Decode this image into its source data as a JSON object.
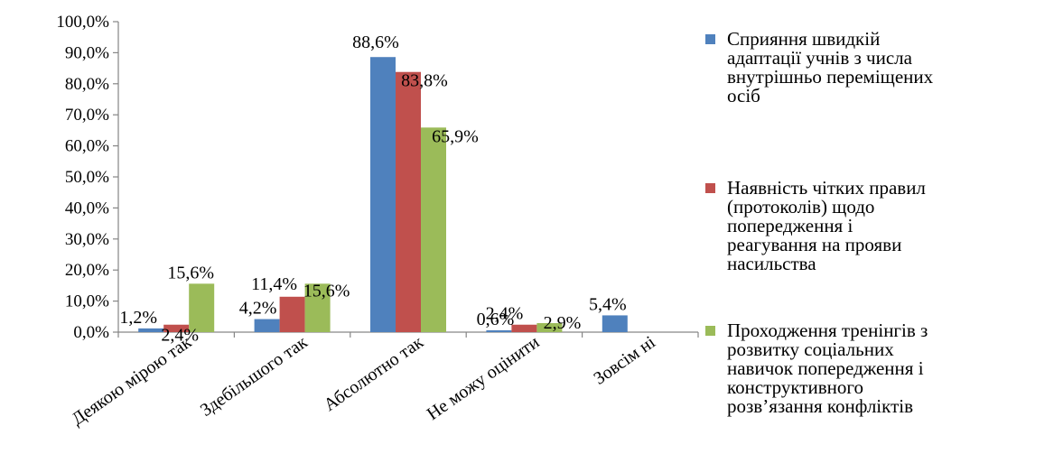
{
  "chart_data": {
    "type": "bar",
    "categories": [
      "Деякою мірою так",
      "Здебільшого так",
      "Абсолютно так",
      "Не можу оцінити",
      "Зовсім ні"
    ],
    "series": [
      {
        "name": "Сприяння швидкій адаптації учнів з числа внутрішньо переміщених осіб",
        "name_lines": [
          "Сприяння швидкій",
          "адаптації учнів з числа",
          "внутрішньо переміщених",
          "осіб"
        ],
        "color": "#4F81BD",
        "values": [
          1.2,
          4.2,
          88.6,
          0.6,
          5.4
        ],
        "labels": [
          "1,2%",
          "4,2%",
          "88,6%",
          "0,6%",
          "5,4%"
        ]
      },
      {
        "name": "Наявність чітких правил (протоколів) щодо попередження і реагування на прояви насильства",
        "name_lines": [
          "Наявність чітких правил",
          "(протоколів) щодо",
          "попередження і",
          "реагування на прояви",
          "насильства"
        ],
        "color": "#C0504D",
        "values": [
          2.4,
          11.4,
          83.8,
          2.4,
          null
        ],
        "labels": [
          "2,4%",
          "11,4%",
          "83,8%",
          "2,4%",
          ""
        ]
      },
      {
        "name": "Проходження тренінгів з розвитку соціальних навичок попередження і конструктивного розв’язання конфліктів",
        "name_lines": [
          "Проходження тренінгів з",
          "розвитку соціальних",
          "навичок попередження і",
          "конструктивного",
          "розв’язання конфліктів"
        ],
        "color": "#9BBB59",
        "values": [
          15.6,
          15.6,
          65.9,
          2.9,
          null
        ],
        "labels": [
          "15,6%",
          "15,6%",
          "65,9%",
          "2,9%",
          ""
        ]
      }
    ],
    "y_ticks": [
      "0,0%",
      "10,0%",
      "20,0%",
      "30,0%",
      "40,0%",
      "50,0%",
      "60,0%",
      "70,0%",
      "80,0%",
      "90,0%",
      "100,0%"
    ],
    "ylim": [
      0,
      100
    ],
    "title": "",
    "xlabel": "",
    "ylabel": "",
    "grid": false,
    "legend_position": "right"
  }
}
